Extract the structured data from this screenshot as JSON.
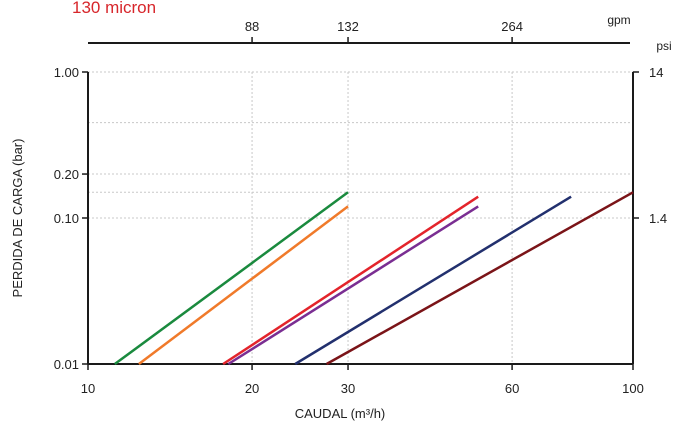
{
  "chart_data": {
    "type": "line",
    "title": "130 micron",
    "title_color": "#d7262b",
    "xlabel": "CAUDAL (m³/h)",
    "ylabel": "PERDIDA DE CARGA  (bar)",
    "x_scale": "log",
    "y_scale": "log",
    "xlim": [
      10,
      100
    ],
    "ylim": [
      0.01,
      1.0
    ],
    "x_ticks": [
      {
        "value": 10,
        "label": "10"
      },
      {
        "value": 20,
        "label": "20"
      },
      {
        "value": 30,
        "label": "30"
      },
      {
        "value": 60,
        "label": "60"
      },
      {
        "value": 100,
        "label": "100"
      }
    ],
    "y_ticks": [
      {
        "value": 0.01,
        "label": "0.01"
      },
      {
        "value": 0.1,
        "label": "0.10"
      },
      {
        "value": 0.2,
        "label": "0.20"
      },
      {
        "value": 1.0,
        "label": "1.00"
      }
    ],
    "y_grid_extra": [
      0.15,
      0.45
    ],
    "grid": true,
    "top_axis": {
      "unit": "gpm",
      "ticks": [
        {
          "value": 20,
          "label": "88"
        },
        {
          "value": 30,
          "label": "132"
        },
        {
          "value": 60,
          "label": "264"
        }
      ]
    },
    "right_axis": {
      "unit": "psi",
      "ticks": [
        {
          "value": 0.1,
          "label": "1.4"
        },
        {
          "value": 1.0,
          "label": "14"
        }
      ]
    },
    "series": [
      {
        "color": "#1a8a3e",
        "x": [
          11.2,
          30
        ],
        "y": [
          0.01,
          0.15
        ]
      },
      {
        "color": "#f07a2a",
        "x": [
          12.4,
          30
        ],
        "y": [
          0.01,
          0.12
        ]
      },
      {
        "color": "#e3242b",
        "x": [
          17.7,
          52
        ],
        "y": [
          0.01,
          0.14
        ]
      },
      {
        "color": "#7a2e92",
        "x": [
          18.1,
          52
        ],
        "y": [
          0.01,
          0.12
        ]
      },
      {
        "color": "#22306e",
        "x": [
          24.0,
          77
        ],
        "y": [
          0.01,
          0.14
        ]
      },
      {
        "color": "#7b1418",
        "x": [
          27.4,
          100
        ],
        "y": [
          0.01,
          0.15
        ]
      }
    ]
  }
}
